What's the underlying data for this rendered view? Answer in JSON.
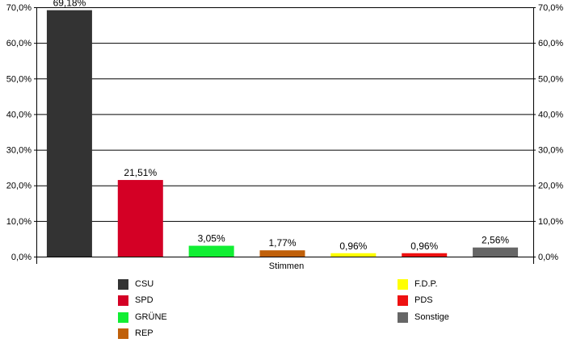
{
  "chart_data": {
    "type": "bar",
    "xlabel": "Stimmen",
    "ylim": [
      0,
      70
    ],
    "y_ticks": [
      "0,0%",
      "10,0%",
      "20,0%",
      "30,0%",
      "40,0%",
      "50,0%",
      "60,0%",
      "70,0%"
    ],
    "y_tick_values": [
      0,
      10,
      20,
      30,
      40,
      50,
      60,
      70
    ],
    "grid": true,
    "legend_position": "bottom",
    "series": [
      {
        "name": "CSU",
        "value": 69.18,
        "label": "69,18%",
        "color": "#333333"
      },
      {
        "name": "SPD",
        "value": 21.51,
        "label": "21,51%",
        "color": "#d40025"
      },
      {
        "name": "GRÜNE",
        "value": 3.05,
        "label": "3,05%",
        "color": "#11ee33"
      },
      {
        "name": "REP",
        "value": 1.77,
        "label": "1,77%",
        "color": "#c0600a"
      },
      {
        "name": "F.D.P.",
        "value": 0.96,
        "label": "0,96%",
        "color": "#ffff00"
      },
      {
        "name": "PDS",
        "value": 0.96,
        "label": "0,96%",
        "color": "#ee1111"
      },
      {
        "name": "Sonstige",
        "value": 2.56,
        "label": "2,56%",
        "color": "#666666"
      }
    ]
  }
}
